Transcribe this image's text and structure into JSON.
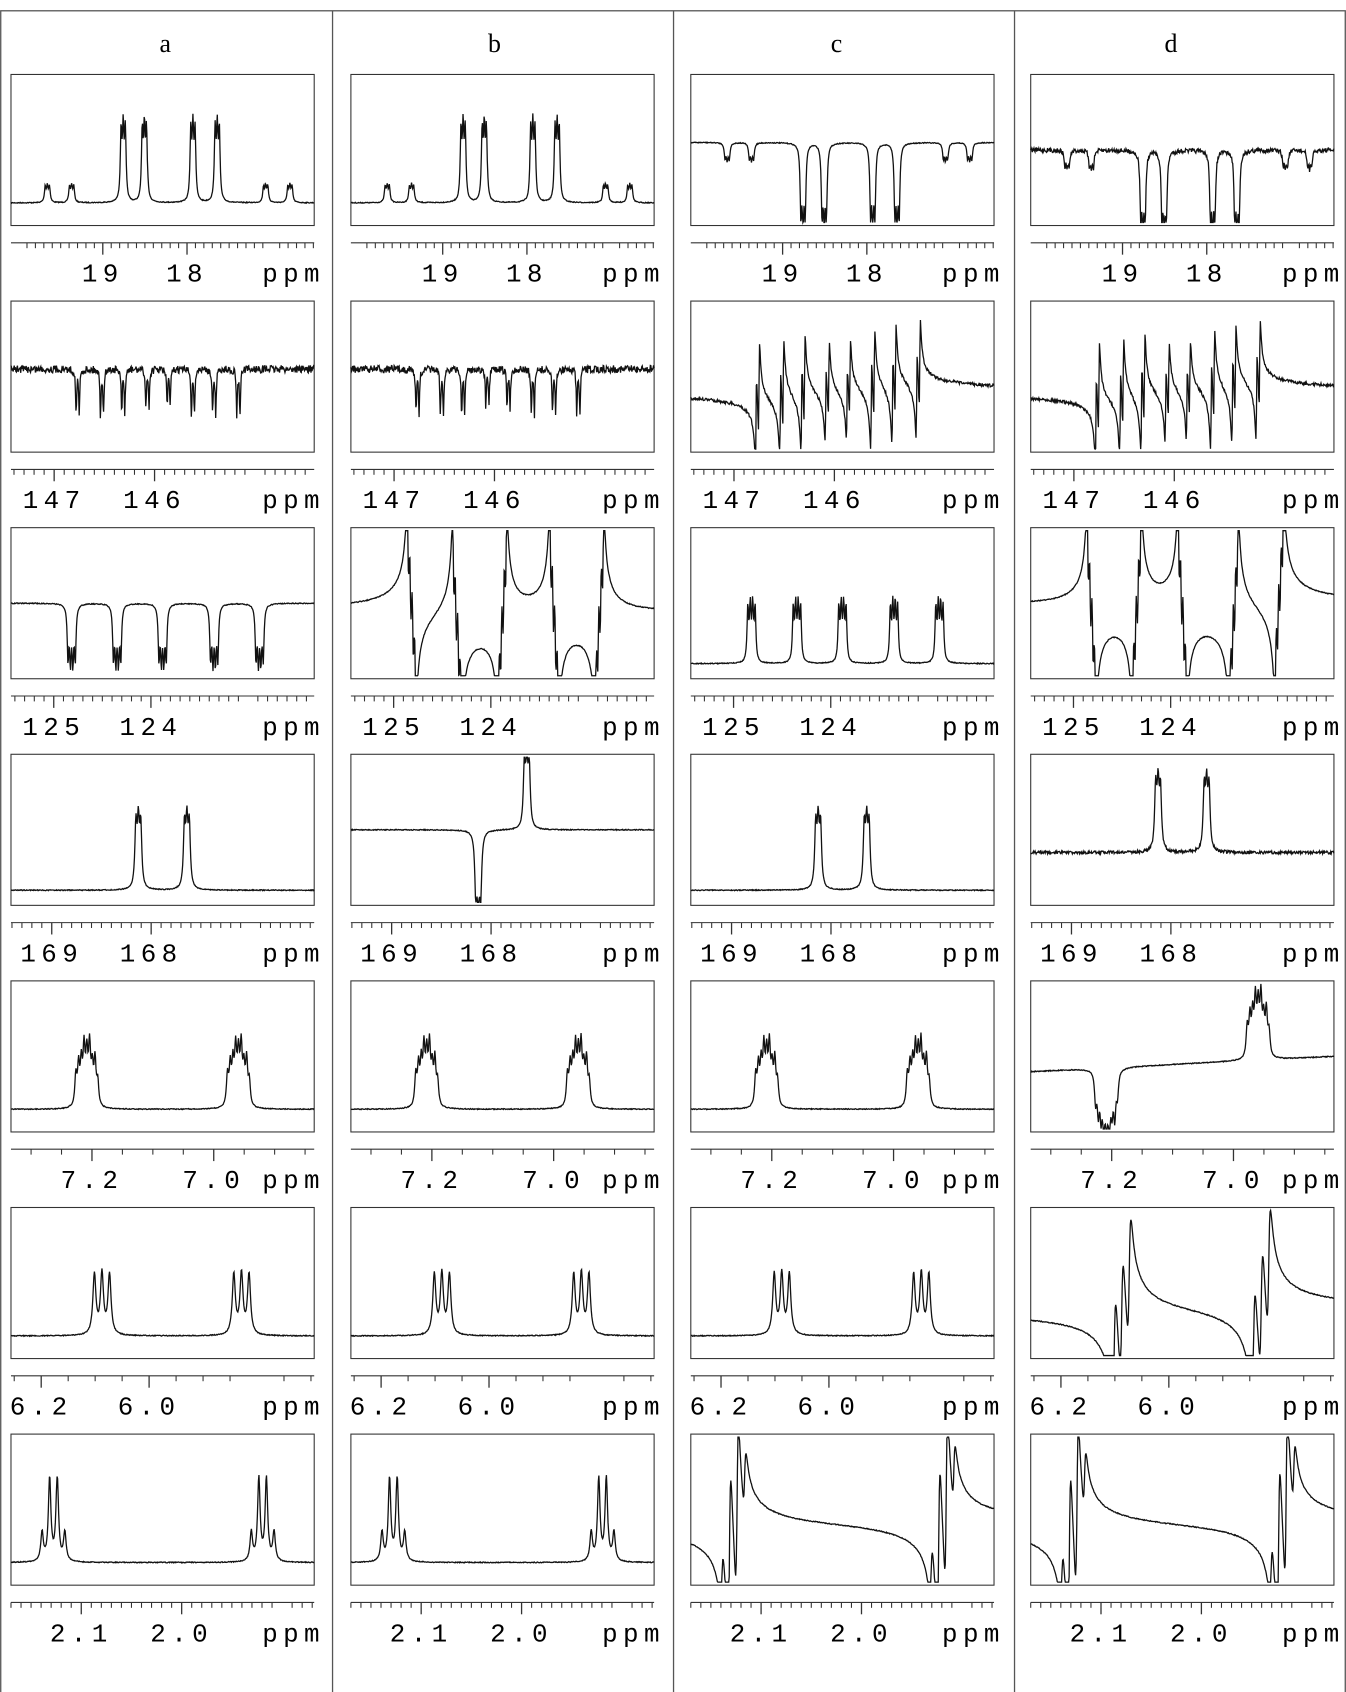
{
  "columns": [
    "a",
    "b",
    "c",
    "d"
  ],
  "rows": [
    {
      "xlim": [
        20.09,
        16.49
      ],
      "xticks": [
        19,
        18
      ],
      "unit": "ppm"
    },
    {
      "xlim": [
        147.43,
        144.41
      ],
      "xticks": [
        147,
        146
      ],
      "unit": "ppm"
    },
    {
      "xlim": [
        125.44,
        122.32
      ],
      "xticks": [
        125,
        124
      ],
      "unit": "ppm"
    },
    {
      "xlim": [
        169.41,
        166.36
      ],
      "xticks": [
        169,
        168
      ],
      "unit": "ppm"
    },
    {
      "xlim": [
        7.333,
        6.835
      ],
      "xticks": [
        7.2,
        {
          "value": 7,
          "label": "7.0"
        }
      ],
      "unit": "ppm"
    },
    {
      "xlim": [
        6.256,
        5.694
      ],
      "xticks": [
        6.2,
        {
          "value": 6,
          "label": "6.0"
        }
      ],
      "unit": "ppm"
    },
    {
      "xlim": [
        2.17,
        1.868
      ],
      "xticks": [
        2.1,
        {
          "value": 2,
          "label": "2.0"
        }
      ],
      "unit": "ppm"
    }
  ]
}
